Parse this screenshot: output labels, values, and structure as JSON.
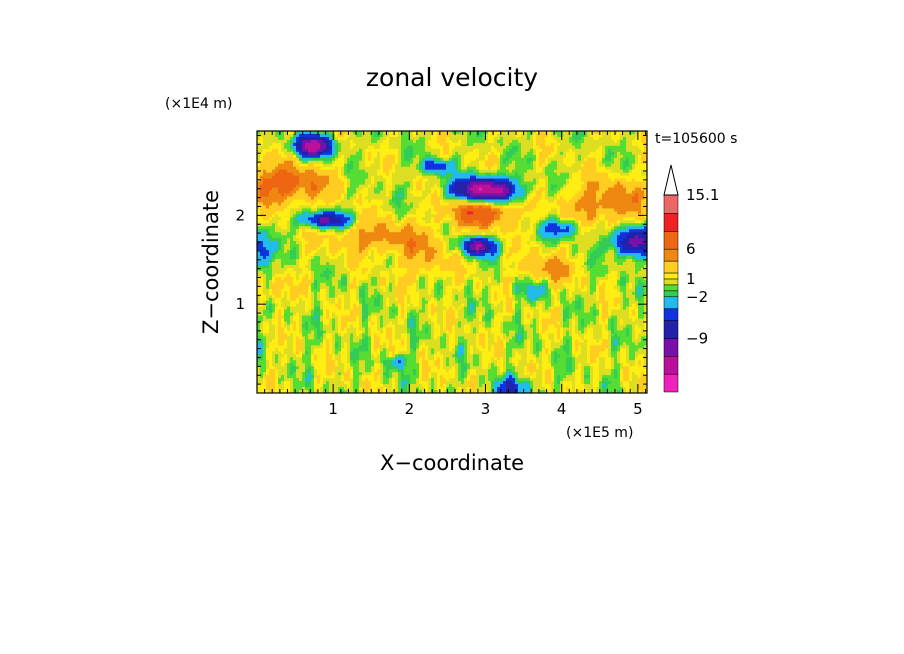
{
  "chart_data": {
    "type": "heatmap",
    "title": "zonal velocity",
    "xlabel": "X−coordinate",
    "ylabel": "Z−coordinate",
    "x_unit": "(×1E5 m)",
    "y_unit": "(×1E4 m)",
    "time_label": "t=105600 s",
    "xlim": [
      0,
      5.12
    ],
    "ylim": [
      0,
      2.95
    ],
    "x_ticks": [
      1,
      2,
      3,
      4,
      5
    ],
    "x_tick_labels": [
      "1",
      "2",
      "3",
      "4",
      "5"
    ],
    "y_ticks": [
      1,
      2
    ],
    "y_tick_labels": [
      "1",
      "2"
    ],
    "colorbar": {
      "levels": [
        -15,
        -12,
        -9,
        -6,
        -4,
        -2,
        -1,
        0,
        1,
        2,
        4,
        6,
        9,
        12,
        15.1
      ],
      "labeled_levels": [
        15.1,
        6,
        1,
        -2,
        -9
      ],
      "labels": [
        "15.1",
        "6",
        "1",
        "−2",
        "−9"
      ],
      "colors": [
        "#ee22bb",
        "#bb1199",
        "#7711aa",
        "#2222aa",
        "#1133dd",
        "#22bbee",
        "#33cc55",
        "#55dd33",
        "#dddd22",
        "#ffee11",
        "#ffcc22",
        "#ee8811",
        "#ee6611",
        "#ee2222",
        "#ee6666",
        "#ffbbbb"
      ],
      "extend_max": true
    },
    "field_description": "Mostly weak positive values (yellow/green) with bands of strong negative flow (blue) near z≈2.0–2.9 and strong positive flow (orange/red) near z≈1.7–2.5"
  }
}
